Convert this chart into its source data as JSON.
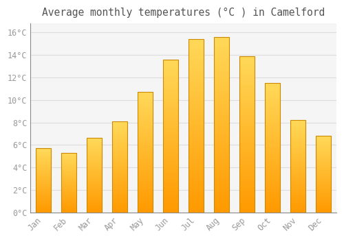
{
  "title": "Average monthly temperatures (°C ) in Camelford",
  "months": [
    "Jan",
    "Feb",
    "Mar",
    "Apr",
    "May",
    "Jun",
    "Jul",
    "Aug",
    "Sep",
    "Oct",
    "Nov",
    "Dec"
  ],
  "values": [
    5.7,
    5.3,
    6.6,
    8.1,
    10.7,
    13.6,
    15.4,
    15.6,
    13.9,
    11.5,
    8.2,
    6.8
  ],
  "bar_color": "#FFA500",
  "bar_top_color": "#FFD060",
  "bar_edge_color": "#CC8800",
  "background_color": "#FFFFFF",
  "plot_bg_color": "#F5F5F5",
  "grid_color": "#DDDDDD",
  "yticks": [
    0,
    2,
    4,
    6,
    8,
    10,
    12,
    14,
    16
  ],
  "ylim": [
    0,
    16.8
  ],
  "tick_label_color": "#999999",
  "title_color": "#555555",
  "title_fontsize": 10.5,
  "tick_fontsize": 8.5,
  "font_family": "monospace"
}
